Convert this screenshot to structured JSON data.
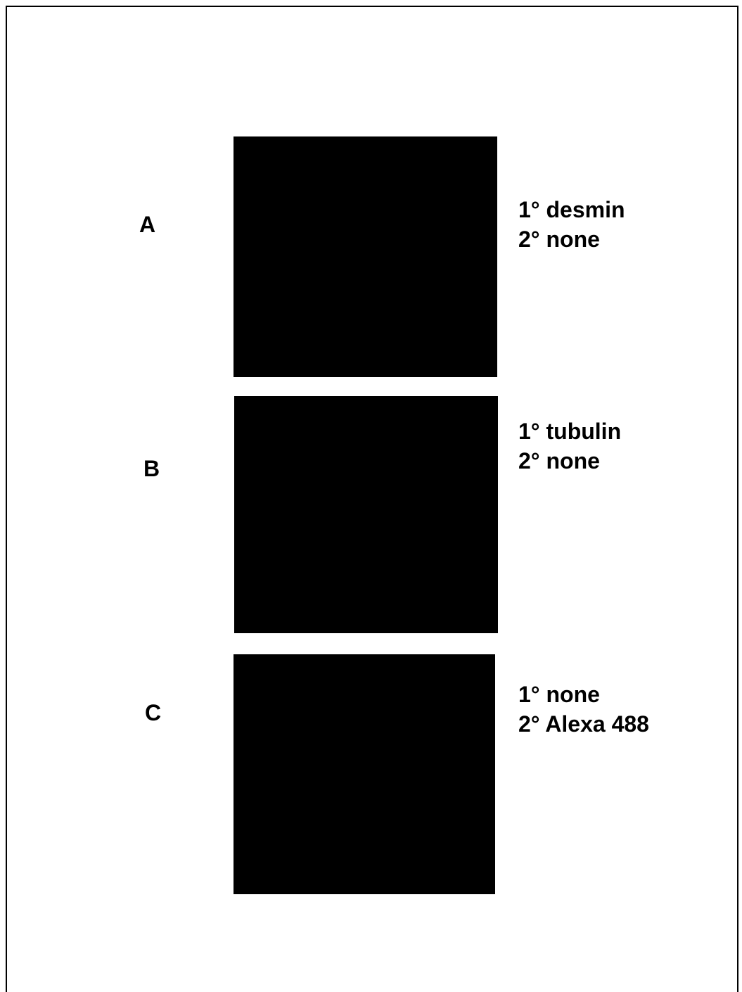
{
  "panels": [
    {
      "label": "A",
      "lines": [
        "1° desmin",
        "2° none"
      ]
    },
    {
      "label": "B",
      "lines": [
        "1° tubulin",
        "2° none"
      ]
    },
    {
      "label": "C",
      "lines": [
        "1° none",
        "2° Alexa 488"
      ]
    }
  ]
}
